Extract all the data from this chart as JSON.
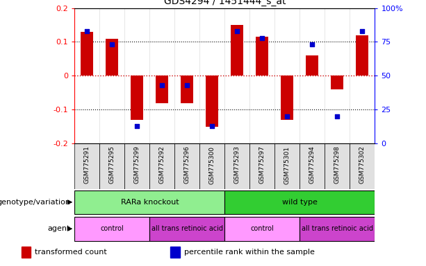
{
  "title": "GDS4294 / 1451444_s_at",
  "samples": [
    "GSM775291",
    "GSM775295",
    "GSM775299",
    "GSM775292",
    "GSM775296",
    "GSM775300",
    "GSM775293",
    "GSM775297",
    "GSM775301",
    "GSM775294",
    "GSM775298",
    "GSM775302"
  ],
  "transformed_count": [
    0.13,
    0.11,
    -0.13,
    -0.08,
    -0.08,
    -0.15,
    0.15,
    0.115,
    -0.13,
    0.06,
    -0.04,
    0.12
  ],
  "percentile_rank": [
    0.83,
    0.73,
    0.13,
    0.43,
    0.43,
    0.13,
    0.83,
    0.78,
    0.2,
    0.73,
    0.2,
    0.83
  ],
  "ylim_left": [
    -0.2,
    0.2
  ],
  "yticks_left": [
    -0.2,
    -0.1,
    0.0,
    0.1,
    0.2
  ],
  "ytick_labels_left": [
    "-0.2",
    "-0.1",
    "0",
    "0.1",
    "0.2"
  ],
  "yticks_right": [
    0,
    25,
    50,
    75,
    100
  ],
  "ytick_labels_right": [
    "0",
    "25",
    "50",
    "75",
    "100%"
  ],
  "bar_color": "#CC0000",
  "dot_color": "#0000CC",
  "bar_width": 0.5,
  "dot_size": 25,
  "hline0_color": "#CC0000",
  "hline_color": "black",
  "groups": [
    {
      "label": "RARa knockout",
      "start": 0,
      "end": 6,
      "color": "#90EE90"
    },
    {
      "label": "wild type",
      "start": 6,
      "end": 12,
      "color": "#32CD32"
    }
  ],
  "agents": [
    {
      "label": "control",
      "start": 0,
      "end": 3,
      "color": "#FF99FF"
    },
    {
      "label": "all trans retinoic acid",
      "start": 3,
      "end": 6,
      "color": "#CC44CC"
    },
    {
      "label": "control",
      "start": 6,
      "end": 9,
      "color": "#FF99FF"
    },
    {
      "label": "all trans retinoic acid",
      "start": 9,
      "end": 12,
      "color": "#CC44CC"
    }
  ],
  "legend_items": [
    {
      "label": "transformed count",
      "color": "#CC0000"
    },
    {
      "label": "percentile rank within the sample",
      "color": "#0000CC"
    }
  ],
  "genotype_label": "genotype/variation",
  "agent_label": "agent"
}
